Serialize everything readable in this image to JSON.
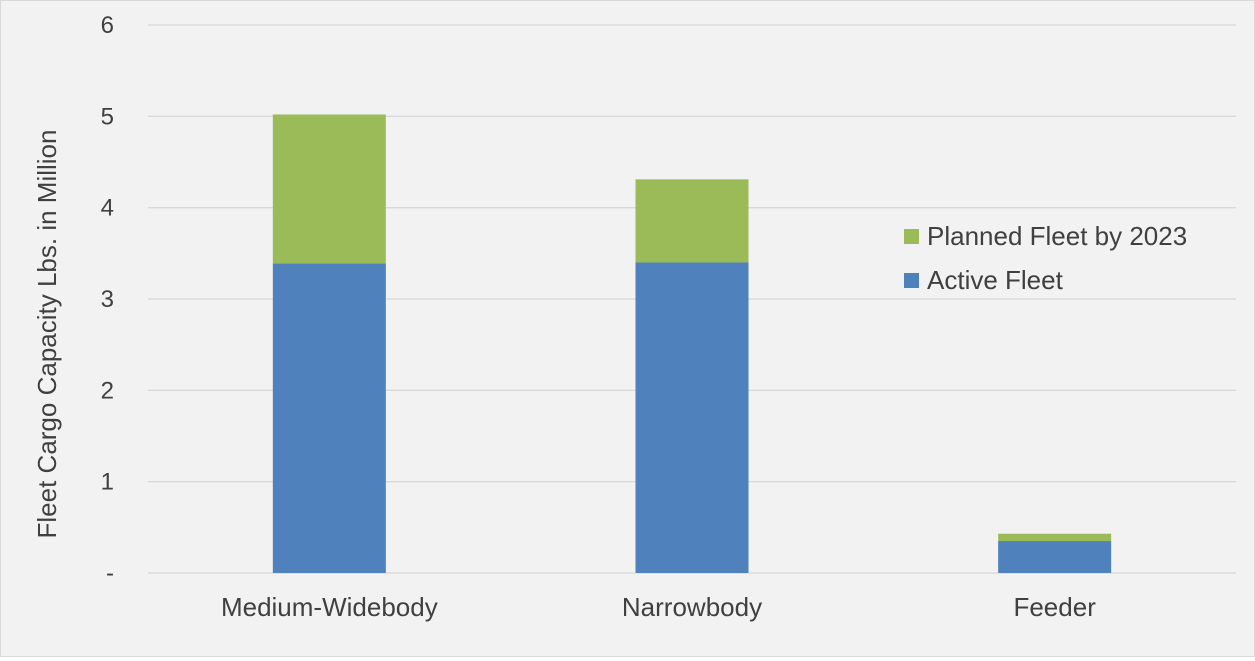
{
  "chart_data": {
    "type": "bar",
    "stacked": true,
    "title": "",
    "xlabel": "",
    "ylabel": "Fleet Cargo Capacity Lbs. in Million",
    "categories": [
      "Medium-Widebody",
      "Narrowbody",
      "Feeder"
    ],
    "series": [
      {
        "name": "Active Fleet",
        "values": [
          3.39,
          3.4,
          0.35
        ],
        "color": "#4f81bd"
      },
      {
        "name": "Planned Fleet by 2023",
        "values": [
          1.63,
          0.91,
          0.08
        ],
        "color": "#9bbb59"
      }
    ],
    "ylim": [
      0,
      6
    ],
    "yticks": [
      {
        "value": 0,
        "label": "-"
      },
      {
        "value": 1,
        "label": "1"
      },
      {
        "value": 2,
        "label": "2"
      },
      {
        "value": 3,
        "label": "3"
      },
      {
        "value": 4,
        "label": "4"
      },
      {
        "value": 5,
        "label": "5"
      },
      {
        "value": 6,
        "label": "6"
      }
    ],
    "grid": true,
    "legend": {
      "placement": "right",
      "items": [
        "Planned Fleet by 2023",
        "Active Fleet"
      ]
    }
  }
}
